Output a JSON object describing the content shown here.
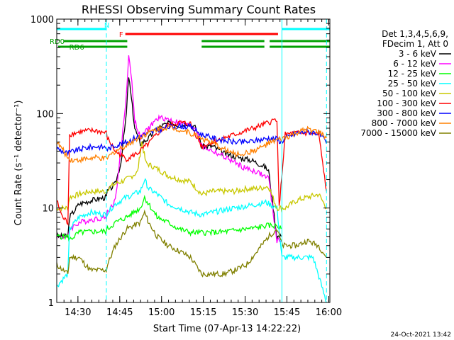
{
  "chart_data": {
    "type": "line",
    "title": "RHESSI Observing Summary Count Rates",
    "xlabel": "Start Time (07-Apr-13 14:22:22)",
    "ylabel": "Count Rate (s⁻¹ detector⁻¹)",
    "yscale": "log",
    "ylim": [
      1,
      1000
    ],
    "xlim_minutes": [
      0,
      98
    ],
    "x_ticks": [
      {
        "label": "14:30",
        "minute": 7.6
      },
      {
        "label": "14:45",
        "minute": 22.6
      },
      {
        "label": "15:00",
        "minute": 37.6
      },
      {
        "label": "15:15",
        "minute": 52.6
      },
      {
        "label": "15:30",
        "minute": 67.6
      },
      {
        "label": "15:45",
        "minute": 82.6
      },
      {
        "label": "16:00",
        "minute": 97.6
      }
    ],
    "y_ticks": [
      {
        "label": "1",
        "value": 1
      },
      {
        "label": "10",
        "value": 10
      },
      {
        "label": "100",
        "value": 100
      },
      {
        "label": "1000",
        "value": 1000
      }
    ],
    "legend_header": [
      "Det 1,3,4,5,6,9,",
      "FDecim 1, Att 0"
    ],
    "legend_placement": "right",
    "timestamp": "24-Oct-2021 13:42",
    "bars": [
      {
        "label": "N",
        "color": "#00ffff",
        "segments": [
          [
            0,
            17.8
          ],
          [
            80.8,
            98
          ]
        ]
      },
      {
        "label": "F",
        "color": "#ff0000",
        "segments": [
          [
            24.6,
            79.4
          ]
        ]
      },
      {
        "label": "RD0",
        "color": "#00a000",
        "segments": [
          [
            2.5,
            25.3
          ],
          [
            52.0,
            74.5
          ],
          [
            76.4,
            98
          ]
        ]
      },
      {
        "label": "RD6",
        "color": "#00a000",
        "segments": [
          [
            0.5,
            25.3
          ],
          [
            52.0,
            74.5
          ],
          [
            76.4,
            98
          ]
        ]
      }
    ],
    "markers": [
      {
        "minute": 17.8,
        "color": "#00ffff",
        "style": "dashed"
      },
      {
        "minute": 80.8,
        "color": "#00ffff",
        "style": "solid"
      },
      {
        "minute": 96.8,
        "color": "#00ffff",
        "style": "dashed"
      }
    ],
    "series": [
      {
        "name": "3 - 6 keV",
        "color": "#000000",
        "points": [
          [
            0,
            5
          ],
          [
            4,
            5
          ],
          [
            4.6,
            8
          ],
          [
            8,
            11
          ],
          [
            12,
            12
          ],
          [
            17.8,
            13
          ],
          [
            18.2,
            15
          ],
          [
            21,
            18
          ],
          [
            23,
            30
          ],
          [
            25,
            100
          ],
          [
            25.8,
            250
          ],
          [
            26.5,
            170
          ],
          [
            28,
            70
          ],
          [
            30,
            48
          ],
          [
            33,
            55
          ],
          [
            36,
            70
          ],
          [
            38,
            75
          ],
          [
            41,
            80
          ],
          [
            44,
            75
          ],
          [
            47,
            80
          ],
          [
            50,
            70
          ],
          [
            52,
            45
          ],
          [
            56,
            45
          ],
          [
            60,
            38
          ],
          [
            64,
            35
          ],
          [
            68,
            33
          ],
          [
            70,
            32
          ],
          [
            72,
            30
          ],
          [
            74,
            28
          ],
          [
            76,
            25
          ],
          [
            79,
            5
          ],
          [
            80.5,
            5
          ]
        ]
      },
      {
        "name": "6 - 12 keV",
        "color": "#ff00ff",
        "points": [
          [
            0,
            5
          ],
          [
            4,
            5
          ],
          [
            4.6,
            6
          ],
          [
            8,
            7
          ],
          [
            12,
            7.5
          ],
          [
            17.8,
            8
          ],
          [
            18.2,
            9
          ],
          [
            21,
            12
          ],
          [
            23,
            40
          ],
          [
            25,
            160
          ],
          [
            25.8,
            420
          ],
          [
            26.6,
            280
          ],
          [
            28,
            85
          ],
          [
            30,
            55
          ],
          [
            33,
            70
          ],
          [
            36,
            88
          ],
          [
            38,
            90
          ],
          [
            41,
            85
          ],
          [
            44,
            80
          ],
          [
            47,
            75
          ],
          [
            50,
            70
          ],
          [
            52,
            45
          ],
          [
            56,
            40
          ],
          [
            60,
            35
          ],
          [
            64,
            30
          ],
          [
            68,
            26
          ],
          [
            70,
            25
          ],
          [
            72,
            24
          ],
          [
            74,
            22
          ],
          [
            76,
            21
          ],
          [
            79,
            4.5
          ],
          [
            80.5,
            4.5
          ]
        ]
      },
      {
        "name": "12 - 25 keV",
        "color": "#00ff00",
        "points": [
          [
            0,
            5
          ],
          [
            4,
            5
          ],
          [
            4.6,
            4.6
          ],
          [
            8,
            5.5
          ],
          [
            12,
            5.6
          ],
          [
            17.8,
            5.7
          ],
          [
            18.2,
            6
          ],
          [
            21,
            7
          ],
          [
            25,
            8
          ],
          [
            30,
            10
          ],
          [
            31.5,
            13
          ],
          [
            33,
            11
          ],
          [
            36,
            8
          ],
          [
            40,
            7
          ],
          [
            44,
            6
          ],
          [
            48,
            5.5
          ],
          [
            52,
            5.5
          ],
          [
            56,
            5.5
          ],
          [
            60,
            5.6
          ],
          [
            64,
            5.8
          ],
          [
            68,
            6
          ],
          [
            72,
            6.2
          ],
          [
            75,
            6.5
          ],
          [
            79,
            6.5
          ],
          [
            80.5,
            6
          ]
        ]
      },
      {
        "name": "25 - 50 keV",
        "color": "#00ffff",
        "points": [
          [
            0,
            1.5
          ],
          [
            4,
            2
          ],
          [
            4.6,
            6
          ],
          [
            8,
            8
          ],
          [
            12,
            9
          ],
          [
            17.8,
            8.5
          ],
          [
            18.2,
            9
          ],
          [
            21,
            11
          ],
          [
            25,
            13
          ],
          [
            30,
            15
          ],
          [
            31.5,
            20
          ],
          [
            33,
            16
          ],
          [
            36,
            14
          ],
          [
            40,
            11
          ],
          [
            44,
            10
          ],
          [
            48,
            9
          ],
          [
            52,
            8.5
          ],
          [
            56,
            9
          ],
          [
            60,
            9.5
          ],
          [
            64,
            10
          ],
          [
            68,
            10.5
          ],
          [
            72,
            11
          ],
          [
            75,
            11.5
          ],
          [
            79,
            10
          ],
          [
            80.8,
            3
          ],
          [
            83,
            3
          ],
          [
            92,
            3
          ],
          [
            96.8,
            1
          ]
        ]
      },
      {
        "name": "50 - 100 keV",
        "color": "#c8c800",
        "points": [
          [
            0,
            10
          ],
          [
            4,
            10
          ],
          [
            4.6,
            13
          ],
          [
            8,
            14
          ],
          [
            12,
            15
          ],
          [
            17.8,
            15
          ],
          [
            18.2,
            16
          ],
          [
            21,
            18
          ],
          [
            25,
            20
          ],
          [
            29,
            24
          ],
          [
            30.5,
            50
          ],
          [
            32,
            30
          ],
          [
            36,
            26
          ],
          [
            40,
            22
          ],
          [
            44,
            20
          ],
          [
            48,
            19
          ],
          [
            52,
            14
          ],
          [
            56,
            15
          ],
          [
            60,
            15
          ],
          [
            64,
            15
          ],
          [
            68,
            16
          ],
          [
            72,
            16
          ],
          [
            76,
            17
          ],
          [
            79,
            10
          ],
          [
            82,
            10
          ],
          [
            86,
            12
          ],
          [
            90,
            13
          ],
          [
            94,
            14
          ],
          [
            96.8,
            10
          ]
        ]
      },
      {
        "name": "100 - 300 keV",
        "color": "#ff0000",
        "points": [
          [
            0,
            12
          ],
          [
            2,
            8
          ],
          [
            4,
            7
          ],
          [
            4.6,
            60
          ],
          [
            6,
            62
          ],
          [
            10,
            65
          ],
          [
            14,
            66
          ],
          [
            17.8,
            62
          ],
          [
            18.2,
            55
          ],
          [
            21,
            40
          ],
          [
            25,
            33
          ],
          [
            29,
            38
          ],
          [
            33,
            48
          ],
          [
            37,
            65
          ],
          [
            40,
            75
          ],
          [
            44,
            80
          ],
          [
            48,
            78
          ],
          [
            52,
            45
          ],
          [
            56,
            50
          ],
          [
            60,
            55
          ],
          [
            64,
            60
          ],
          [
            68,
            66
          ],
          [
            72,
            72
          ],
          [
            76,
            80
          ],
          [
            79,
            88
          ],
          [
            79.8,
            10
          ],
          [
            82,
            60
          ],
          [
            86,
            62
          ],
          [
            90,
            62
          ],
          [
            94,
            60
          ],
          [
            96.8,
            15
          ]
        ]
      },
      {
        "name": "300 - 800 keV",
        "color": "#0000ff",
        "points": [
          [
            0,
            43
          ],
          [
            2,
            40
          ],
          [
            4,
            38
          ],
          [
            6,
            40
          ],
          [
            10,
            43
          ],
          [
            14,
            45
          ],
          [
            17.8,
            44
          ],
          [
            18.2,
            42
          ],
          [
            21,
            46
          ],
          [
            25,
            50
          ],
          [
            29,
            57
          ],
          [
            33,
            62
          ],
          [
            37,
            68
          ],
          [
            40,
            72
          ],
          [
            44,
            74
          ],
          [
            48,
            72
          ],
          [
            52,
            60
          ],
          [
            56,
            55
          ],
          [
            60,
            52
          ],
          [
            64,
            50
          ],
          [
            68,
            50
          ],
          [
            72,
            52
          ],
          [
            76,
            55
          ],
          [
            79,
            54
          ],
          [
            80.5,
            50
          ],
          [
            82,
            55
          ],
          [
            86,
            62
          ],
          [
            90,
            65
          ],
          [
            94,
            62
          ],
          [
            96.8,
            48
          ]
        ]
      },
      {
        "name": "800 - 7000 keV",
        "color": "#ff8000",
        "points": [
          [
            0,
            50
          ],
          [
            2,
            42
          ],
          [
            4,
            34
          ],
          [
            6,
            32
          ],
          [
            10,
            33
          ],
          [
            14,
            34
          ],
          [
            17.8,
            33
          ],
          [
            18.2,
            34
          ],
          [
            21,
            40
          ],
          [
            25,
            46
          ],
          [
            29,
            55
          ],
          [
            33,
            63
          ],
          [
            37,
            70
          ],
          [
            40,
            72
          ],
          [
            44,
            68
          ],
          [
            48,
            62
          ],
          [
            52,
            55
          ],
          [
            56,
            48
          ],
          [
            60,
            42
          ],
          [
            64,
            37
          ],
          [
            68,
            38
          ],
          [
            72,
            42
          ],
          [
            76,
            48
          ],
          [
            79,
            52
          ],
          [
            82,
            55
          ],
          [
            86,
            62
          ],
          [
            90,
            68
          ],
          [
            94,
            64
          ],
          [
            96.8,
            55
          ]
        ]
      },
      {
        "name": "7000 - 15000 keV",
        "color": "#808000",
        "points": [
          [
            0,
            2.5
          ],
          [
            4,
            2
          ],
          [
            4.6,
            3
          ],
          [
            8,
            3
          ],
          [
            12,
            2.2
          ],
          [
            17.8,
            2.2
          ],
          [
            18.2,
            2.5
          ],
          [
            21,
            4
          ],
          [
            25,
            6
          ],
          [
            30,
            7
          ],
          [
            31.5,
            9
          ],
          [
            33,
            7
          ],
          [
            36,
            5
          ],
          [
            40,
            4
          ],
          [
            44,
            3.5
          ],
          [
            48,
            3
          ],
          [
            52,
            2
          ],
          [
            56,
            2
          ],
          [
            60,
            2
          ],
          [
            64,
            2.2
          ],
          [
            68,
            2.5
          ],
          [
            72,
            3.5
          ],
          [
            76,
            5
          ],
          [
            79,
            6
          ],
          [
            81,
            4
          ],
          [
            86,
            4
          ],
          [
            90,
            4.5
          ],
          [
            94,
            4
          ],
          [
            96.8,
            3
          ]
        ]
      }
    ]
  }
}
